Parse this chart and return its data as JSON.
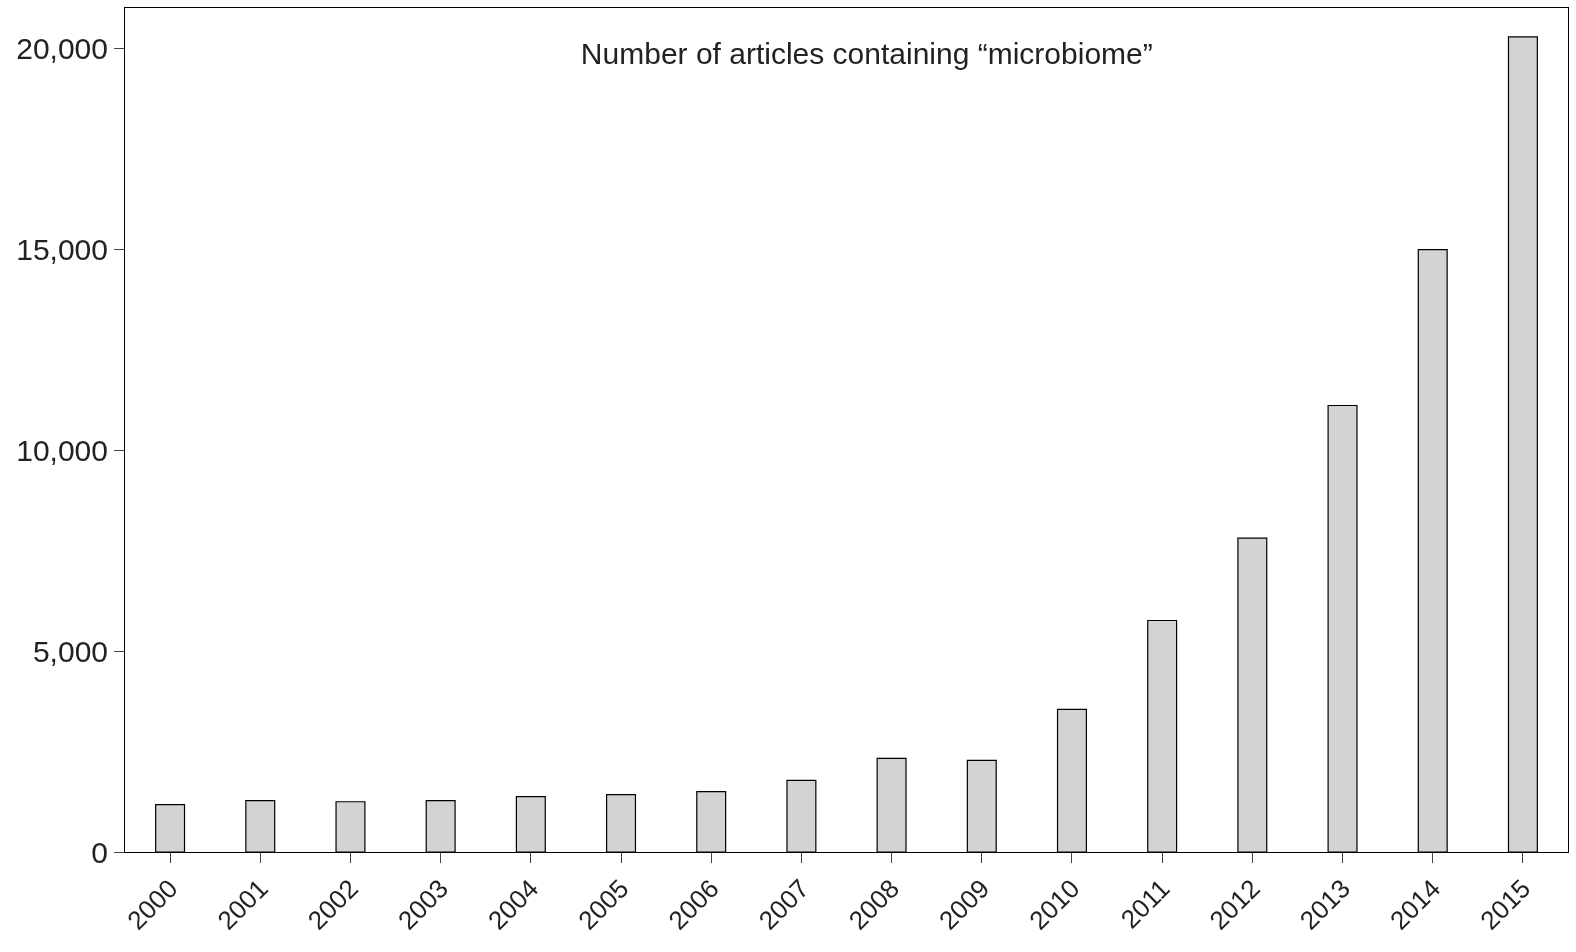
{
  "chart_data": {
    "type": "bar",
    "title": "Number of articles containing “microbiome”",
    "categories": [
      "2000",
      "2001",
      "2002",
      "2003",
      "2004",
      "2005",
      "2006",
      "2007",
      "2008",
      "2009",
      "2010",
      "2011",
      "2012",
      "2013",
      "2014",
      "2015"
    ],
    "values": [
      1180,
      1280,
      1250,
      1280,
      1380,
      1430,
      1500,
      1780,
      2330,
      2280,
      3550,
      5760,
      7810,
      11110,
      14990,
      20280
    ],
    "color": "#d3d3d3",
    "ylim": [
      0,
      21000
    ],
    "yticks": [
      {
        "value": 0,
        "label": "0"
      },
      {
        "value": 5000,
        "label": "5,000"
      },
      {
        "value": 10000,
        "label": "10,000"
      },
      {
        "value": 15000,
        "label": "15,000"
      },
      {
        "value": 20000,
        "label": "20,000"
      }
    ],
    "tick_labels": "xy"
  }
}
